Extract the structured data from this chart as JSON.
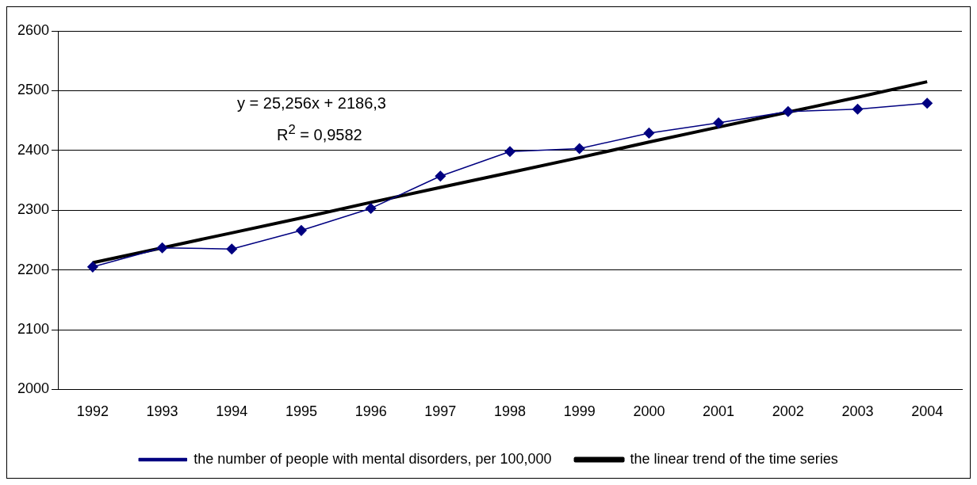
{
  "chart_data": {
    "type": "line",
    "categories": [
      "1992",
      "1993",
      "1994",
      "1995",
      "1996",
      "1997",
      "1998",
      "1999",
      "2000",
      "2001",
      "2002",
      "2003",
      "2004"
    ],
    "series": [
      {
        "name": "the number of people with mental disorders, per 100,000",
        "color": "#000080",
        "marker": "diamond",
        "values": [
          2205,
          2237,
          2235,
          2266,
          2303,
          2357,
          2398,
          2403,
          2429,
          2446,
          2465,
          2469,
          2479
        ]
      },
      {
        "name": "the linear trend of the time series",
        "type": "line",
        "color": "#000000",
        "marker": "none",
        "values": [
          2212,
          2237,
          2262,
          2287,
          2313,
          2338,
          2363,
          2388,
          2414,
          2439,
          2464,
          2489,
          2515
        ]
      }
    ],
    "ylim": [
      2000,
      2600
    ],
    "yticks": [
      2000,
      2100,
      2200,
      2300,
      2400,
      2500,
      2600
    ],
    "grid": "y",
    "legend": "bottom",
    "annotations": [
      "y = 25,256x + 2186,3",
      "R$^{2}$ = 0,9582"
    ]
  }
}
